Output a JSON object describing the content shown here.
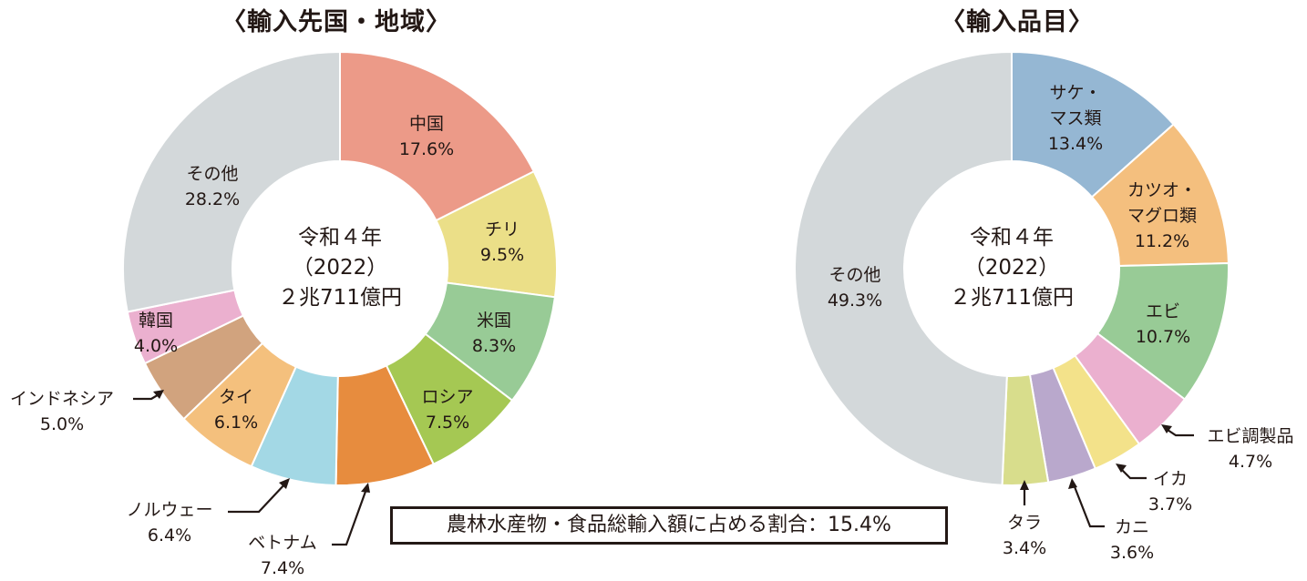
{
  "chart_data": [
    {
      "type": "pie",
      "subtype": "donut",
      "title": "〈輸入先国・地域〉",
      "center_text": [
        "令和４年",
        "（2022）",
        "２兆711億円"
      ],
      "unit": "%",
      "start_angle": "12 o'clock, clockwise",
      "categories": [
        "中国",
        "チリ",
        "米国",
        "ロシア",
        "ベトナム",
        "ノルウェー",
        "タイ",
        "インドネシア",
        "韓国",
        "その他"
      ],
      "values": [
        17.6,
        9.5,
        8.3,
        7.5,
        7.4,
        6.4,
        6.1,
        5.0,
        4.0,
        28.2
      ],
      "colors": [
        "#ec9a88",
        "#ebdf88",
        "#98cb96",
        "#a5c853",
        "#e78c3e",
        "#a3d8e5",
        "#f4c07d",
        "#d1a37e",
        "#ebb0cf",
        "#d3d8da"
      ]
    },
    {
      "type": "pie",
      "subtype": "donut",
      "title": "〈輸入品目〉",
      "center_text": [
        "令和４年",
        "（2022）",
        "２兆711億円"
      ],
      "unit": "%",
      "start_angle": "12 o'clock, clockwise",
      "categories": [
        "サケ・マス類",
        "カツオ・マグロ類",
        "エビ",
        "エビ調製品",
        "イカ",
        "カニ",
        "タラ",
        "その他"
      ],
      "values": [
        13.4,
        11.2,
        10.7,
        4.7,
        3.7,
        3.6,
        3.4,
        49.3
      ],
      "colors": [
        "#95b7d3",
        "#f4bf7e",
        "#98cb96",
        "#ebb0cf",
        "#f3e28a",
        "#b9a8cc",
        "#d8dd8c",
        "#d3d8da"
      ]
    }
  ],
  "left": {
    "title": "〈輸入先国・地域〉",
    "center": {
      "line1": "令和４年",
      "line2": "（2022）",
      "line3": "２兆711億円"
    },
    "labels": {
      "china": {
        "name": "中国",
        "pct": "17.6%"
      },
      "chile": {
        "name": "チリ",
        "pct": "9.5%"
      },
      "usa": {
        "name": "米国",
        "pct": "8.3%"
      },
      "russia": {
        "name": "ロシア",
        "pct": "7.5%"
      },
      "vietnam": {
        "name": "ベトナム",
        "pct": "7.4%"
      },
      "norway": {
        "name": "ノルウェー",
        "pct": "6.4%"
      },
      "thailand": {
        "name": "タイ",
        "pct": "6.1%"
      },
      "indonesia": {
        "name": "インドネシア",
        "pct": "5.0%"
      },
      "korea": {
        "name": "韓国",
        "pct": "4.0%"
      },
      "other": {
        "name": "その他",
        "pct": "28.2%"
      }
    }
  },
  "right": {
    "title": "〈輸入品目〉",
    "center": {
      "line1": "令和４年",
      "line2": "（2022）",
      "line3": "２兆711億円"
    },
    "labels": {
      "salmon": {
        "name1": "サケ・",
        "name2": "マス類",
        "pct": "13.4%"
      },
      "tuna": {
        "name1": "カツオ・",
        "name2": "マグロ類",
        "pct": "11.2%"
      },
      "shrimp": {
        "name": "エビ",
        "pct": "10.7%"
      },
      "shrimp_prep": {
        "name": "エビ調製品",
        "pct": "4.7%"
      },
      "squid": {
        "name": "イカ",
        "pct": "3.7%"
      },
      "crab": {
        "name": "カニ",
        "pct": "3.6%"
      },
      "cod": {
        "name": "タラ",
        "pct": "3.4%"
      },
      "other": {
        "name": "その他",
        "pct": "49.3%"
      }
    }
  },
  "note": "農林水産物・食品総輸入額に占める割合：15.4%"
}
